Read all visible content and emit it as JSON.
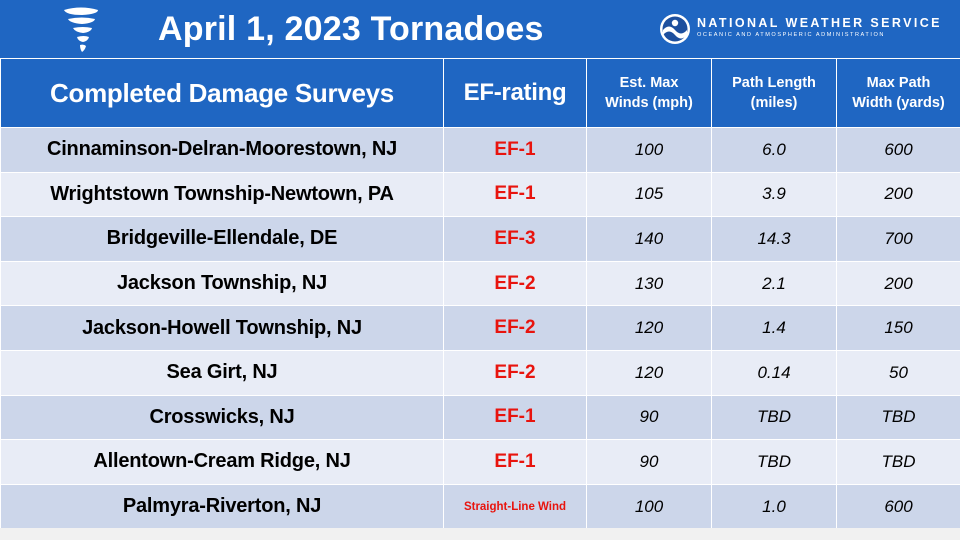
{
  "header": {
    "title": "April 1, 2023 Tornadoes",
    "org_name": "NATIONAL WEATHER SERVICE",
    "org_subtitle": "OCEANIC AND ATMOSPHERIC ADMINISTRATION",
    "icons": [
      "tornado-icon",
      "noaa-logo-icon"
    ]
  },
  "table": {
    "columns": {
      "location": "Completed Damage Surveys",
      "rating": "EF-rating",
      "winds_l1": "Est. Max",
      "winds_l2": "Winds (mph)",
      "length_l1": "Path Length",
      "length_l2": "(miles)",
      "width_l1": "Max Path",
      "width_l2": "Width (yards)"
    },
    "rows": [
      {
        "location": "Cinnaminson-Delran-Moorestown, NJ",
        "rating": "EF-1",
        "winds": "100",
        "length": "6.0",
        "width": "600"
      },
      {
        "location": "Wrightstown Township-Newtown, PA",
        "rating": "EF-1",
        "winds": "105",
        "length": "3.9",
        "width": "200"
      },
      {
        "location": "Bridgeville-Ellendale, DE",
        "rating": "EF-3",
        "winds": "140",
        "length": "14.3",
        "width": "700"
      },
      {
        "location": "Jackson Township, NJ",
        "rating": "EF-2",
        "winds": "130",
        "length": "2.1",
        "width": "200"
      },
      {
        "location": "Jackson-Howell Township, NJ",
        "rating": "EF-2",
        "winds": "120",
        "length": "1.4",
        "width": "150"
      },
      {
        "location": "Sea Girt, NJ",
        "rating": "EF-2",
        "winds": "120",
        "length": "0.14",
        "width": "50"
      },
      {
        "location": "Crosswicks, NJ",
        "rating": "EF-1",
        "winds": "90",
        "length": "TBD",
        "width": "TBD"
      },
      {
        "location": "Allentown-Cream Ridge, NJ",
        "rating": "EF-1",
        "winds": "90",
        "length": "TBD",
        "width": "TBD"
      },
      {
        "location": "Palmyra-Riverton, NJ",
        "rating": "Straight-Line Wind",
        "winds": "100",
        "length": "1.0",
        "width": "600"
      }
    ]
  },
  "colors": {
    "header_blue": "#1f66c2",
    "row_dark": "#ccd6ea",
    "row_light": "#e8ecf6",
    "rating_red": "#e8140e"
  }
}
